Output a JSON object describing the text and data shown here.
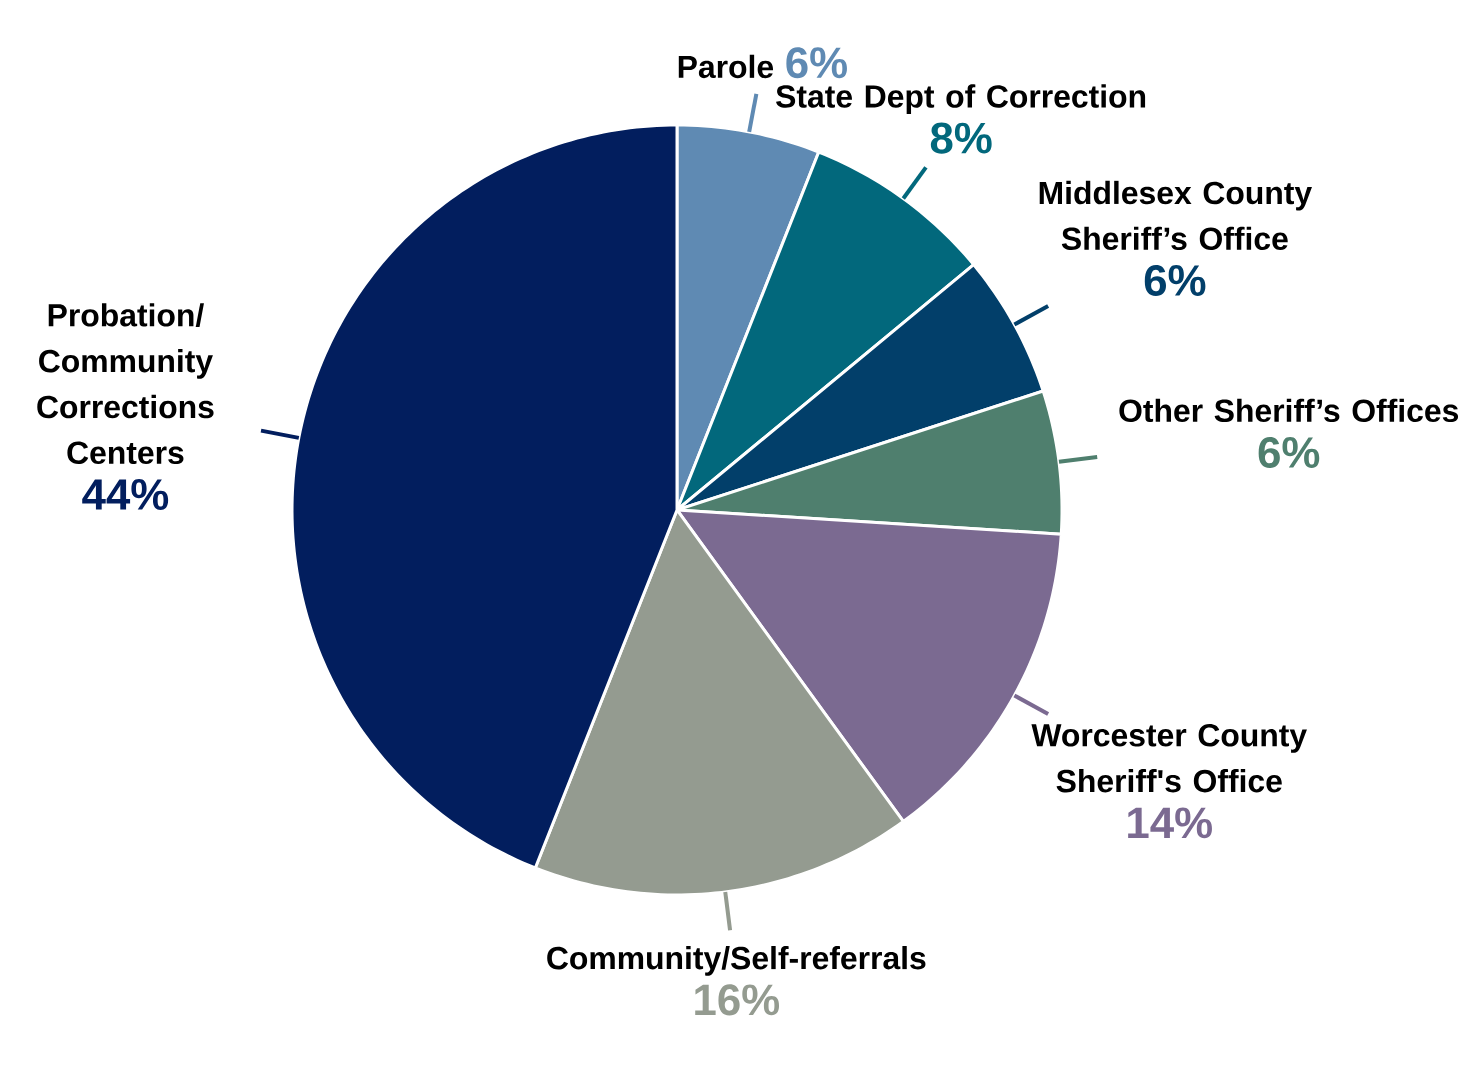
{
  "chart_data": {
    "type": "pie",
    "categories": [
      "Parole",
      "State Dept of Correction",
      "Middlesex County Sheriff’s Office",
      "Other Sheriff’s Offices",
      "Worcester County Sheriff's Office",
      "Community/Self-referrals",
      "Probation/ Community Corrections Centers"
    ],
    "values": [
      6,
      8,
      6,
      6,
      14,
      16,
      44
    ],
    "value_labels": [
      "6%",
      "8%",
      "6%",
      "6%",
      "14%",
      "16%",
      "44%"
    ],
    "colors": [
      "#5f8ab3",
      "#02687c",
      "#023f6a",
      "#4f7f6e",
      "#7b6a91",
      "#949b90",
      "#021e5e"
    ]
  }
}
